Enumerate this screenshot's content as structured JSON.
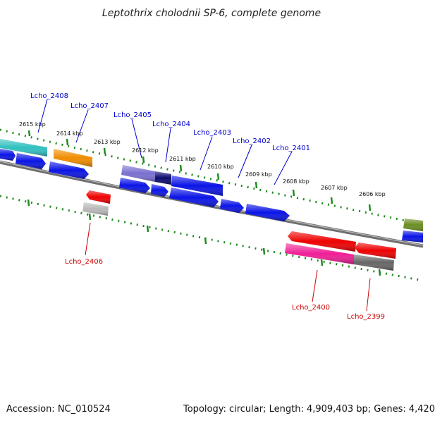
{
  "title": "Leptothrix cholodnii SP-6, complete genome",
  "footer": {
    "accession": "Accession: NC_010524",
    "topology": "Topology: circular; Length: 4,909,403 bp; Genes: 4,420"
  },
  "colors": {
    "forward_label": "#0000cc",
    "reverse_label": "#cc0000",
    "tick": "#228b22",
    "backbone": "#808080"
  },
  "ruler": [
    {
      "label": "2615 kbp"
    },
    {
      "label": "2614 kbp"
    },
    {
      "label": "2613 kbp"
    },
    {
      "label": "2612 kbp"
    },
    {
      "label": "2611 kbp"
    },
    {
      "label": "2610 kbp"
    },
    {
      "label": "2609 kbp"
    },
    {
      "label": "2608 kbp"
    },
    {
      "label": "2607 kbp"
    },
    {
      "label": "2606 kbp"
    }
  ],
  "gene_labels": [
    {
      "name": "Lcho_2408",
      "strand": "forward"
    },
    {
      "name": "Lcho_2407",
      "strand": "forward"
    },
    {
      "name": "Lcho_2405",
      "strand": "forward"
    },
    {
      "name": "Lcho_2404",
      "strand": "forward"
    },
    {
      "name": "Lcho_2403",
      "strand": "forward"
    },
    {
      "name": "Lcho_2402",
      "strand": "forward"
    },
    {
      "name": "Lcho_2401",
      "strand": "forward"
    },
    {
      "name": "Lcho_2406",
      "strand": "reverse"
    },
    {
      "name": "Lcho_2400",
      "strand": "reverse"
    },
    {
      "name": "Lcho_2399",
      "strand": "reverse"
    }
  ]
}
